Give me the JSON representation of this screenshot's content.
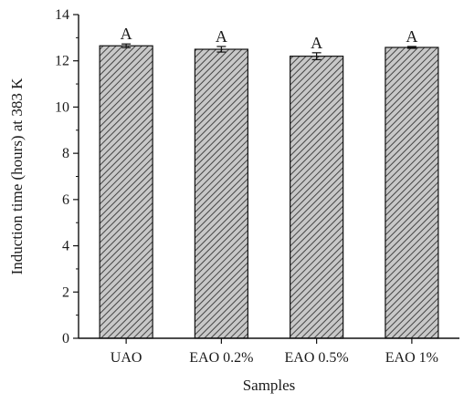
{
  "chart_data": {
    "type": "bar",
    "title": "",
    "xlabel": "Samples",
    "ylabel": "Induction time (hours) at 383 K",
    "categories": [
      "UAO",
      "EAO 0.2%",
      "EAO 0.5%",
      "EAO 1%"
    ],
    "values": [
      12.65,
      12.5,
      12.2,
      12.58
    ],
    "errors": [
      0.08,
      0.12,
      0.15,
      0.04
    ],
    "data_labels": [
      "A",
      "A",
      "A",
      "A"
    ],
    "ylim": [
      0,
      14
    ],
    "yticks": [
      0,
      2,
      4,
      6,
      8,
      10,
      12,
      14
    ],
    "ytick_labels": [
      "0",
      "2",
      "4",
      "6",
      "8",
      "10",
      "12",
      "14"
    ],
    "grid": false,
    "legend": "none",
    "bar_pattern": "diagonal-hatch",
    "colors": {
      "bar_fill": "#c8c8c8",
      "hatch": "#444444",
      "outline": "#111111"
    }
  }
}
